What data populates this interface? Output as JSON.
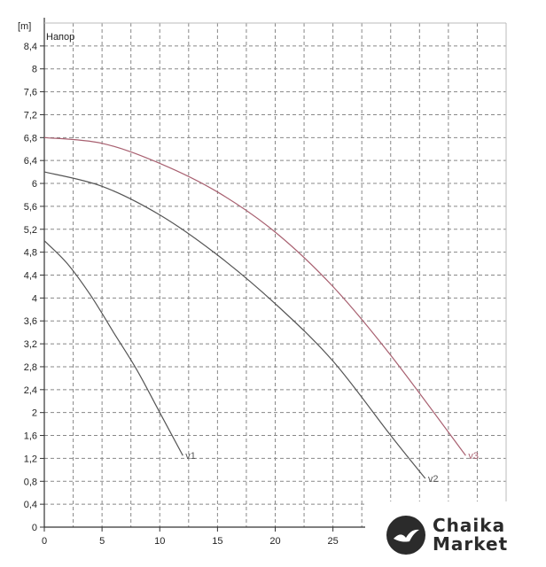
{
  "chart_data": {
    "type": "line",
    "title": "Напор",
    "y_unit_label": "[m]",
    "xlim": [
      0,
      40
    ],
    "ylim": [
      0,
      8.8
    ],
    "x_ticks": [
      0,
      5,
      10,
      15,
      20,
      25
    ],
    "y_ticks": [
      0,
      0.4,
      0.8,
      1.2,
      1.6,
      2,
      2.4,
      2.8,
      3.2,
      3.6,
      4,
      4.4,
      4.8,
      5.2,
      5.6,
      6,
      6.4,
      6.8,
      7.2,
      7.6,
      8,
      8.4
    ],
    "x_tick_labels": [
      "0",
      "5",
      "10",
      "15",
      "20",
      "25"
    ],
    "y_tick_labels": [
      "0",
      "0,4",
      "0,8",
      "1,2",
      "1,6",
      "2",
      "2,4",
      "2,8",
      "3,2",
      "3,6",
      "4",
      "4,4",
      "4,8",
      "5,2",
      "5,6",
      "6",
      "6,4",
      "6,8",
      "7,2",
      "7,6",
      "8",
      "8,4"
    ],
    "grid": true,
    "series": [
      {
        "name": "v1",
        "color": "#555555",
        "x": [
          0,
          2,
          4,
          6,
          8,
          10,
          12
        ],
        "y": [
          5.0,
          4.6,
          4.05,
          3.4,
          2.75,
          2.0,
          1.25
        ]
      },
      {
        "name": "v2",
        "color": "#555555",
        "x": [
          0,
          5,
          10,
          15,
          20,
          25,
          30,
          33
        ],
        "y": [
          6.2,
          5.95,
          5.45,
          4.75,
          3.9,
          2.9,
          1.6,
          0.85
        ]
      },
      {
        "name": "v3",
        "color": "#a86070",
        "x": [
          0,
          5,
          10,
          15,
          20,
          25,
          30,
          36.5
        ],
        "y": [
          6.8,
          6.7,
          6.35,
          5.85,
          5.15,
          4.2,
          3.0,
          1.25
        ]
      }
    ]
  },
  "logo": {
    "line1": "Chaika",
    "line2": "Market",
    "icon": "bird-icon"
  }
}
